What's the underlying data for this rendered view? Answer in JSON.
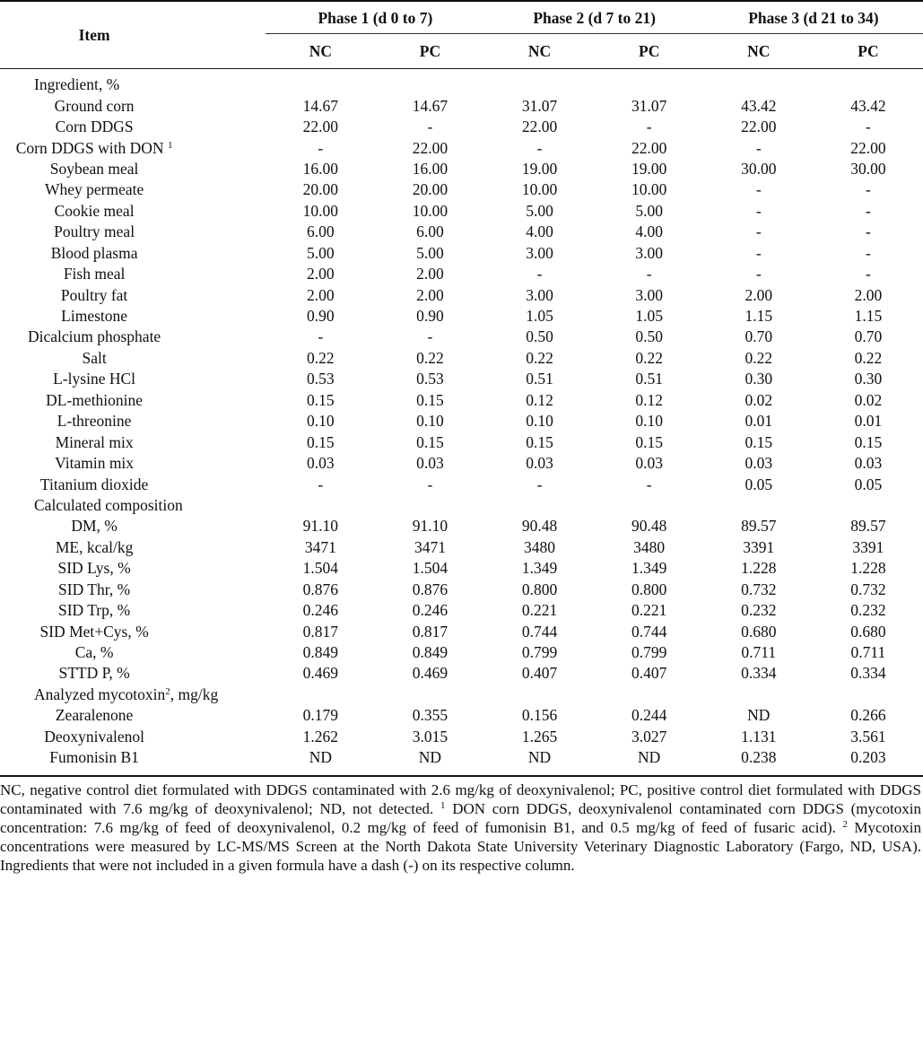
{
  "header": {
    "item": "Item",
    "phases": [
      "Phase 1 (d 0 to 7)",
      "Phase 2 (d 7 to 21)",
      "Phase 3 (d 21 to 34)"
    ],
    "treatments": [
      "NC",
      "PC",
      "NC",
      "PC",
      "NC",
      "PC"
    ]
  },
  "rows": [
    {
      "section": "Ingredient, %"
    },
    {
      "label": "Ground corn",
      "values": [
        "14.67",
        "14.67",
        "31.07",
        "31.07",
        "43.42",
        "43.42"
      ]
    },
    {
      "label": "Corn DDGS",
      "values": [
        "22.00",
        "-",
        "22.00",
        "-",
        "22.00",
        "-"
      ]
    },
    {
      "label": "Corn DDGS with DON",
      "sup": "1",
      "values": [
        "-",
        "22.00",
        "-",
        "22.00",
        "-",
        "22.00"
      ]
    },
    {
      "label": "Soybean meal",
      "values": [
        "16.00",
        "16.00",
        "19.00",
        "19.00",
        "30.00",
        "30.00"
      ]
    },
    {
      "label": "Whey permeate",
      "values": [
        "20.00",
        "20.00",
        "10.00",
        "10.00",
        "-",
        "-"
      ]
    },
    {
      "label": "Cookie meal",
      "values": [
        "10.00",
        "10.00",
        "5.00",
        "5.00",
        "-",
        "-"
      ]
    },
    {
      "label": "Poultry meal",
      "values": [
        "6.00",
        "6.00",
        "4.00",
        "4.00",
        "-",
        "-"
      ]
    },
    {
      "label": "Blood plasma",
      "values": [
        "5.00",
        "5.00",
        "3.00",
        "3.00",
        "-",
        "-"
      ]
    },
    {
      "label": "Fish meal",
      "values": [
        "2.00",
        "2.00",
        "-",
        "-",
        "-",
        "-"
      ]
    },
    {
      "label": "Poultry fat",
      "values": [
        "2.00",
        "2.00",
        "3.00",
        "3.00",
        "2.00",
        "2.00"
      ]
    },
    {
      "label": "Limestone",
      "values": [
        "0.90",
        "0.90",
        "1.05",
        "1.05",
        "1.15",
        "1.15"
      ]
    },
    {
      "label": "Dicalcium phosphate",
      "values": [
        "-",
        "-",
        "0.50",
        "0.50",
        "0.70",
        "0.70"
      ]
    },
    {
      "label": "Salt",
      "values": [
        "0.22",
        "0.22",
        "0.22",
        "0.22",
        "0.22",
        "0.22"
      ]
    },
    {
      "label": "L-lysine HCl",
      "values": [
        "0.53",
        "0.53",
        "0.51",
        "0.51",
        "0.30",
        "0.30"
      ]
    },
    {
      "label": "DL-methionine",
      "values": [
        "0.15",
        "0.15",
        "0.12",
        "0.12",
        "0.02",
        "0.02"
      ]
    },
    {
      "label": "L-threonine",
      "values": [
        "0.10",
        "0.10",
        "0.10",
        "0.10",
        "0.01",
        "0.01"
      ]
    },
    {
      "label": "Mineral mix",
      "values": [
        "0.15",
        "0.15",
        "0.15",
        "0.15",
        "0.15",
        "0.15"
      ]
    },
    {
      "label": "Vitamin mix",
      "values": [
        "0.03",
        "0.03",
        "0.03",
        "0.03",
        "0.03",
        "0.03"
      ]
    },
    {
      "label": "Titanium dioxide",
      "values": [
        "-",
        "-",
        "-",
        "-",
        "0.05",
        "0.05"
      ]
    },
    {
      "section": "Calculated composition"
    },
    {
      "label": "DM, %",
      "values": [
        "91.10",
        "91.10",
        "90.48",
        "90.48",
        "89.57",
        "89.57"
      ]
    },
    {
      "label": "ME, kcal/kg",
      "values": [
        "3471",
        "3471",
        "3480",
        "3480",
        "3391",
        "3391"
      ]
    },
    {
      "label": "SID Lys, %",
      "values": [
        "1.504",
        "1.504",
        "1.349",
        "1.349",
        "1.228",
        "1.228"
      ]
    },
    {
      "label": "SID Thr, %",
      "values": [
        "0.876",
        "0.876",
        "0.800",
        "0.800",
        "0.732",
        "0.732"
      ]
    },
    {
      "label": "SID Trp, %",
      "values": [
        "0.246",
        "0.246",
        "0.221",
        "0.221",
        "0.232",
        "0.232"
      ]
    },
    {
      "label": "SID Met+Cys, %",
      "values": [
        "0.817",
        "0.817",
        "0.744",
        "0.744",
        "0.680",
        "0.680"
      ]
    },
    {
      "label": "Ca, %",
      "values": [
        "0.849",
        "0.849",
        "0.799",
        "0.799",
        "0.711",
        "0.711"
      ]
    },
    {
      "label": "STTD P, %",
      "values": [
        "0.469",
        "0.469",
        "0.407",
        "0.407",
        "0.334",
        "0.334"
      ]
    },
    {
      "section": "Analyzed mycotoxin",
      "sup": "2",
      "suffix": ", mg/kg"
    },
    {
      "label": "Zearalenone",
      "values": [
        "0.179",
        "0.355",
        "0.156",
        "0.244",
        "ND",
        "0.266"
      ]
    },
    {
      "label": "Deoxynivalenol",
      "values": [
        "1.262",
        "3.015",
        "1.265",
        "3.027",
        "1.131",
        "3.561"
      ]
    },
    {
      "label": "Fumonisin B1",
      "values": [
        "ND",
        "ND",
        "ND",
        "ND",
        "0.238",
        "0.203"
      ]
    }
  ],
  "footnote": {
    "part1": "NC, negative control diet formulated with DDGS contaminated with 2.6 mg/kg of deoxynivalenol; PC, positive control diet formulated with DDGS contaminated with 7.6 mg/kg of deoxynivalenol; ND, not detected. ",
    "sup1": "1",
    "part2": " DON corn DDGS, deoxynivalenol contaminated corn DDGS (mycotoxin concentration: 7.6 mg/kg of feed of deoxynivalenol, 0.2 mg/kg of feed of fumonisin B1, and 0.5 mg/kg of feed of fusaric acid). ",
    "sup2": "2",
    "part3": " Mycotoxin concentrations were measured by LC-MS/MS Screen at the North Dakota State University Veterinary Diagnostic Laboratory (Fargo, ND, USA). Ingredients that were not included in a given formula have a dash (-) on its respective column."
  }
}
